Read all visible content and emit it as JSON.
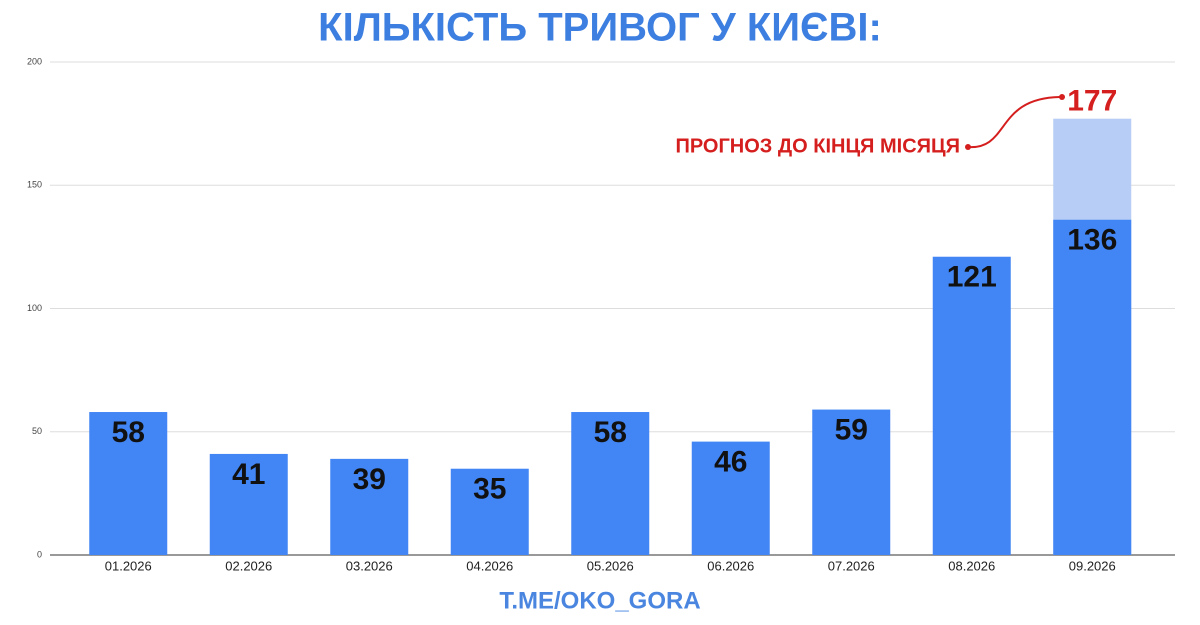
{
  "chart_data": {
    "type": "bar",
    "title": "КІЛЬКІСТЬ ТРИВОГ У КИЄВІ:",
    "categories": [
      "01.2026",
      "02.2026",
      "03.2026",
      "04.2026",
      "05.2026",
      "06.2026",
      "07.2026",
      "08.2026",
      "09.2026"
    ],
    "series": [
      {
        "color": "#b7cdf5",
        "values": [
          null,
          null,
          null,
          null,
          null,
          null,
          null,
          null,
          177
        ]
      },
      {
        "color": "#4285f4",
        "values": [
          58,
          41,
          39,
          35,
          58,
          46,
          59,
          121,
          136
        ]
      }
    ],
    "annotation": "ПРОГНОЗ ДО КІНЦЯ МІСЯЦЯ",
    "footer": "T.ME/OKO_GORA",
    "ylim": [
      0,
      200
    ],
    "yticks": [
      0,
      50,
      100,
      150,
      200
    ],
    "grid": true
  }
}
